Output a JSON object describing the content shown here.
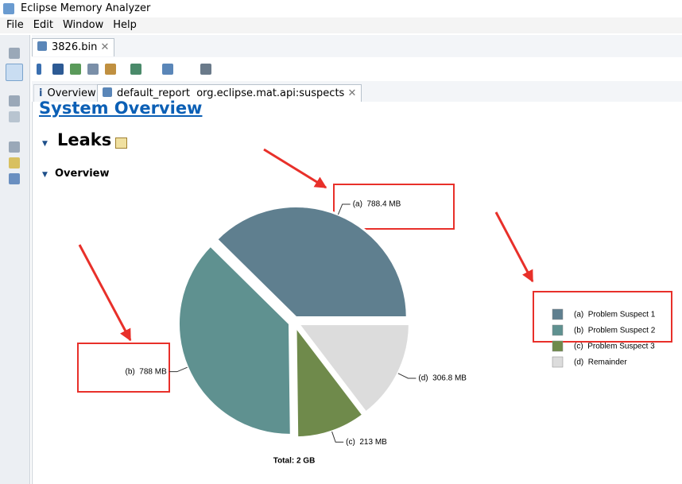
{
  "window": {
    "title": "Eclipse Memory Analyzer"
  },
  "menu": [
    "File",
    "Edit",
    "Window",
    "Help"
  ],
  "editor_tab": "3826.bin",
  "sub_tabs": [
    "Overview",
    "default_report  org.eclipse.mat.api:suspects"
  ],
  "report": {
    "heading": "System Overview",
    "section": "Leaks",
    "subsection": "Overview"
  },
  "chart_data": {
    "type": "pie",
    "categories": [
      "(a)  Problem Suspect 1",
      "(b)  Problem Suspect 2",
      "(c)  Problem Suspect 3",
      "(d)  Remainder"
    ],
    "values": [
      788.4,
      788,
      213,
      306.8
    ],
    "value_labels": [
      "(a)  788.4 MB",
      "(b)  788 MB",
      "(c)  213 MB",
      "(d)  306.8 MB"
    ],
    "colors": [
      "#5f7f8f",
      "#5f9190",
      "#6f8a4b",
      "#dcdcdc"
    ],
    "total_label": "Total: 2 GB"
  }
}
